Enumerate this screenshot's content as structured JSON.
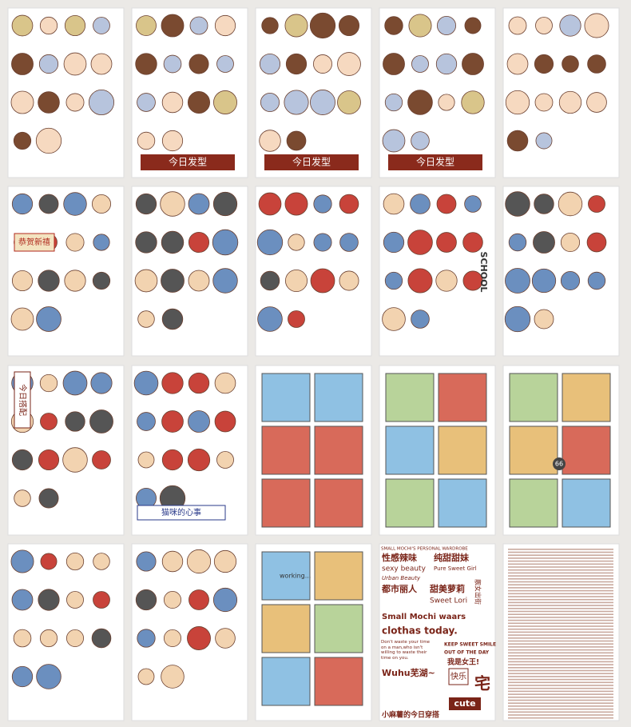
{
  "hair_banners": [
    "今日发型",
    "今日发型",
    "今日发型"
  ],
  "festival_banner": "恭贺新禧",
  "school_word": "SCHOOL",
  "outfit_banner": "今日搭配",
  "cat_banner": "猫咪的心事",
  "working_label": "working...",
  "road_sign": "66",
  "text_sheet": {
    "header": "SMALL MOCHI'S PERSONAL WARDROBE",
    "sexy_cn": "性感辣味",
    "sexy_en": "sexy beauty",
    "pure_cn": "纯甜甜妹",
    "pure_en": "Pure Sweet Girl",
    "urban_en": "Urban Beauty",
    "urban_cn": "都市丽人",
    "sweet_cn": "甜美萝莉",
    "sweet_en": "Sweet Lori",
    "street_cn": "靓女出街",
    "title_1": "Small Mochi waars",
    "title_2": "clothas today.",
    "quote": "Don't waste your time on a man,who isn't willing to waste their time on you.",
    "keep_1": "KEEP SWEET SMILE",
    "keep_2": "OUT OF THE DAY",
    "queen": "我是女王!",
    "wuhu": "Wuhu芜湖~",
    "happy": "快乐",
    "home": "宅",
    "cute": "cute",
    "footer": "小麻薯的今日穿搭"
  }
}
